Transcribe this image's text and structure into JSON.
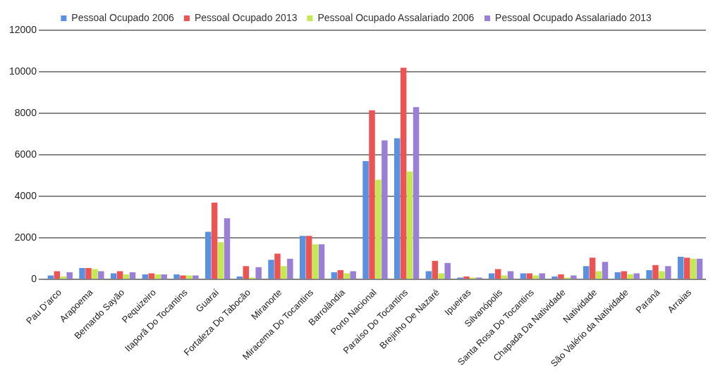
{
  "chart_data": {
    "type": "bar",
    "categories": [
      "Pau D'arco",
      "Arapoema",
      "Bernardo Sayão",
      "Pequizeiro",
      "Itaporã Do Tocantins",
      "Guaraí",
      "Fortaleza Do Tabocão",
      "Miranorte",
      "Miracema Do Tocantins",
      "Barrolândia",
      "Porto Nacional",
      "Paraíso Do Tocantins",
      "Brejinho De Nazaré",
      "Ipueiras",
      "Silvanópolis",
      "Santa Rosa Do Tocantins",
      "Chapada Da Natividade",
      "Natividade",
      "São Valério da Natividade",
      "Paraná",
      "Arraias"
    ],
    "series": [
      {
        "name": "Pessoal Ocupado 2006",
        "color": "#5b8fe0",
        "values": [
          200,
          550,
          300,
          250,
          250,
          2300,
          150,
          950,
          2100,
          350,
          5700,
          6800,
          400,
          100,
          300,
          300,
          150,
          650,
          350,
          450,
          1100
        ]
      },
      {
        "name": "Pessoal Ocupado 2013",
        "color": "#ec5454",
        "values": [
          400,
          550,
          400,
          300,
          200,
          3700,
          650,
          1250,
          2100,
          450,
          8150,
          10200,
          900,
          150,
          500,
          300,
          250,
          1050,
          400,
          700,
          1050
        ]
      },
      {
        "name": "Pessoal Ocupado Assalariado 2006",
        "color": "#c4e852",
        "values": [
          150,
          500,
          250,
          250,
          200,
          1800,
          100,
          650,
          1700,
          300,
          4800,
          5200,
          300,
          100,
          200,
          200,
          100,
          400,
          250,
          400,
          1000
        ]
      },
      {
        "name": "Pessoal Ocupado Assalariado 2013",
        "color": "#9a7fd6",
        "values": [
          350,
          400,
          350,
          250,
          200,
          2950,
          600,
          1000,
          1700,
          400,
          6700,
          8300,
          800,
          100,
          400,
          300,
          200,
          850,
          300,
          650,
          1000
        ]
      }
    ],
    "ylim": [
      0,
      12000
    ],
    "yticks": [
      0,
      2000,
      4000,
      6000,
      8000,
      10000,
      12000
    ],
    "grid": "y",
    "legend": "top"
  }
}
